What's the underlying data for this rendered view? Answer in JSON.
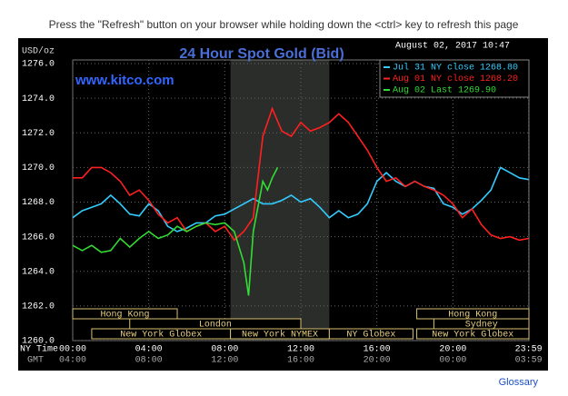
{
  "header": "Press the \"Refresh\" button on your browser while holding down the <ctrl> key to refresh this page",
  "footer_link": "Glossary",
  "chart_data": {
    "type": "line",
    "title": "24 Hour Spot Gold (Bid)",
    "watermark": "www.kitco.com",
    "y_label": "USD/oz",
    "legend_title": "August 02, 2017 10:47",
    "x_label": "NY Time",
    "x2_label": "GMT",
    "ylim": [
      1260,
      1276
    ],
    "yticks": [
      {
        "value": 1260,
        "label": "1260.0"
      },
      {
        "value": 1262,
        "label": "1262.0"
      },
      {
        "value": 1264,
        "label": "1264.0"
      },
      {
        "value": 1266,
        "label": "1266.0"
      },
      {
        "value": 1268,
        "label": "1268.0"
      },
      {
        "value": 1270,
        "label": "1270.0"
      },
      {
        "value": 1272,
        "label": "1272.0"
      },
      {
        "value": 1274,
        "label": "1274.0"
      },
      {
        "value": 1276,
        "label": "1276.0"
      }
    ],
    "xlim": [
      0,
      24
    ],
    "xticks": [
      {
        "value": 0,
        "label": "00:00"
      },
      {
        "value": 4,
        "label": "04:00"
      },
      {
        "value": 8,
        "label": "08:00"
      },
      {
        "value": 12,
        "label": "12:00"
      },
      {
        "value": 16,
        "label": "16:00"
      },
      {
        "value": 20,
        "label": "20:00"
      },
      {
        "value": 23.98,
        "label": "23:59"
      }
    ],
    "x2tick_labels": [
      "04:00",
      "08:00",
      "12:00",
      "16:00",
      "20:00",
      "00:00",
      "03:59"
    ],
    "grid": true,
    "highlight_range": [
      8.3,
      13.5
    ],
    "sessions": [
      {
        "label": "Hong Kong",
        "start": 0,
        "end": 5.5
      },
      {
        "label": "Hong Kong",
        "start": 18.1,
        "end": 24
      },
      {
        "label": "London",
        "start": 3,
        "end": 12
      },
      {
        "label": "Sydney",
        "start": 19,
        "end": 24
      },
      {
        "label": "New York Globex",
        "start": 1,
        "end": 8.3
      },
      {
        "label": "New York NYMEX",
        "start": 8.3,
        "end": 13.5
      },
      {
        "label": "NY Globex",
        "start": 13.5,
        "end": 17.9
      },
      {
        "label": "New York Globex",
        "start": 18.1,
        "end": 24
      }
    ],
    "series": [
      {
        "name": "Jul 31 NY close 1268.80",
        "color": "#33ccff",
        "x": [
          0,
          0.5,
          1,
          1.5,
          2,
          2.5,
          3,
          3.5,
          4,
          4.5,
          5,
          5.5,
          6,
          6.5,
          7,
          7.5,
          8,
          8.5,
          9,
          9.5,
          10,
          10.5,
          11,
          11.5,
          12,
          12.5,
          13,
          13.5,
          14,
          14.5,
          15,
          15.5,
          16,
          16.5,
          17,
          17.5,
          18,
          18.5,
          19,
          19.5,
          20,
          20.5,
          21,
          21.5,
          22,
          22.5,
          23,
          23.5,
          23.98
        ],
        "values": [
          1267.1,
          1267.5,
          1267.7,
          1267.9,
          1268.4,
          1267.9,
          1267.3,
          1267.2,
          1267.9,
          1267.5,
          1266.6,
          1266.3,
          1266.5,
          1266.8,
          1266.8,
          1267.2,
          1267.3,
          1267.6,
          1267.9,
          1268.2,
          1267.9,
          1267.9,
          1268.1,
          1268.4,
          1268.0,
          1268.2,
          1267.7,
          1267.1,
          1267.5,
          1267.1,
          1267.3,
          1267.9,
          1269.2,
          1269.7,
          1269.2,
          1268.9,
          1269.2,
          1268.9,
          1268.8,
          1267.9,
          1267.7,
          1267.3,
          1267.6,
          1268.1,
          1268.7,
          1270.0,
          1269.7,
          1269.4,
          1269.3
        ]
      },
      {
        "name": "Aug 01 NY close 1268.20",
        "color": "#ff2020",
        "x": [
          0,
          0.5,
          1,
          1.5,
          2,
          2.5,
          3,
          3.5,
          4,
          4.5,
          5,
          5.5,
          6,
          6.5,
          7,
          7.5,
          8,
          8.5,
          9,
          9.5,
          10,
          10.5,
          11,
          11.5,
          12,
          12.5,
          13,
          13.5,
          14,
          14.5,
          15,
          15.5,
          16,
          16.5,
          17,
          17.5,
          18,
          18.5,
          19,
          19.5,
          20,
          20.5,
          21,
          21.5,
          22,
          22.5,
          23,
          23.5,
          23.98
        ],
        "values": [
          1269.4,
          1269.4,
          1270.0,
          1270.0,
          1269.7,
          1269.2,
          1268.4,
          1268.7,
          1268.1,
          1267.3,
          1266.8,
          1267.1,
          1266.3,
          1266.6,
          1266.8,
          1266.3,
          1266.6,
          1265.8,
          1266.3,
          1267.1,
          1271.8,
          1273.4,
          1272.1,
          1271.8,
          1272.6,
          1272.1,
          1272.3,
          1272.6,
          1273.1,
          1272.6,
          1271.8,
          1271.0,
          1270.0,
          1269.2,
          1269.4,
          1268.9,
          1269.2,
          1268.9,
          1268.7,
          1268.4,
          1267.9,
          1267.1,
          1267.6,
          1266.7,
          1266.1,
          1265.9,
          1266.0,
          1265.8,
          1265.9
        ]
      },
      {
        "name": "Aug 02 Last 1269.90",
        "color": "#33dd33",
        "x": [
          0,
          0.5,
          1,
          1.5,
          2,
          2.5,
          3,
          3.5,
          4,
          4.5,
          5,
          5.5,
          6,
          6.5,
          7,
          7.5,
          8,
          8.5,
          9,
          9.25,
          9.5,
          10,
          10.25,
          10.5,
          10.78
        ],
        "values": [
          1265.5,
          1265.2,
          1265.5,
          1265.1,
          1265.2,
          1265.9,
          1265.4,
          1265.9,
          1266.3,
          1265.9,
          1266.1,
          1266.6,
          1266.3,
          1266.6,
          1266.8,
          1266.7,
          1266.8,
          1266.3,
          1264.5,
          1262.6,
          1266.3,
          1269.2,
          1268.7,
          1269.4,
          1270.0
        ]
      }
    ]
  }
}
